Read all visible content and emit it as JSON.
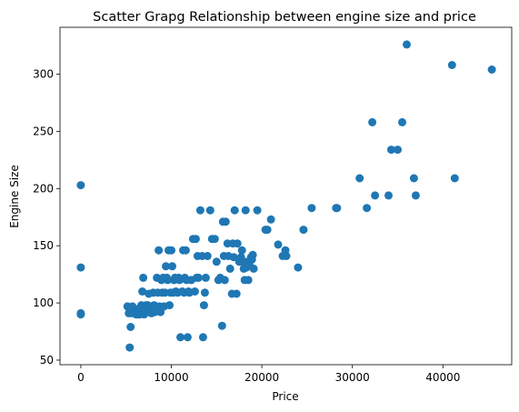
{
  "chart_data": {
    "type": "scatter",
    "title": "Scatter Grapg Relationship between engine size and price",
    "xlabel": "Price",
    "ylabel": "Engine Size",
    "xlim": [
      -2300,
      47600
    ],
    "ylim": [
      46,
      341
    ],
    "xticks": [
      0,
      10000,
      20000,
      30000,
      40000
    ],
    "xtick_labels": [
      "0",
      "10000",
      "20000",
      "30000",
      "40000"
    ],
    "yticks": [
      50,
      100,
      150,
      200,
      250,
      300
    ],
    "ytick_labels": [
      "50",
      "100",
      "150",
      "200",
      "250",
      "300"
    ],
    "grid": false,
    "marker_color": "#1f77b4",
    "points": [
      [
        0,
        203
      ],
      [
        0,
        131
      ],
      [
        0,
        91
      ],
      [
        0,
        90
      ],
      [
        5150,
        97
      ],
      [
        5300,
        91
      ],
      [
        5400,
        61
      ],
      [
        5500,
        79
      ],
      [
        5600,
        91
      ],
      [
        5700,
        97
      ],
      [
        6100,
        90
      ],
      [
        6200,
        92
      ],
      [
        6300,
        90
      ],
      [
        6400,
        95
      ],
      [
        6500,
        90
      ],
      [
        6600,
        92
      ],
      [
        6700,
        98
      ],
      [
        6800,
        110
      ],
      [
        6900,
        122
      ],
      [
        7000,
        90
      ],
      [
        7100,
        92
      ],
      [
        7200,
        98
      ],
      [
        7300,
        95
      ],
      [
        7400,
        98
      ],
      [
        7500,
        108
      ],
      [
        7600,
        92
      ],
      [
        7700,
        97
      ],
      [
        7800,
        91
      ],
      [
        7900,
        97
      ],
      [
        8000,
        109
      ],
      [
        8100,
        98
      ],
      [
        8200,
        92
      ],
      [
        8400,
        122
      ],
      [
        8500,
        109
      ],
      [
        8600,
        146
      ],
      [
        8700,
        97
      ],
      [
        8800,
        92
      ],
      [
        8900,
        120
      ],
      [
        9000,
        109
      ],
      [
        9100,
        122
      ],
      [
        9200,
        97
      ],
      [
        9300,
        109
      ],
      [
        9400,
        132
      ],
      [
        9500,
        122
      ],
      [
        9600,
        120
      ],
      [
        9700,
        146
      ],
      [
        9800,
        98
      ],
      [
        9900,
        109
      ],
      [
        10000,
        146
      ],
      [
        10100,
        132
      ],
      [
        10200,
        109
      ],
      [
        10300,
        120
      ],
      [
        10400,
        122
      ],
      [
        10500,
        110
      ],
      [
        10700,
        109
      ],
      [
        10800,
        122
      ],
      [
        10900,
        120
      ],
      [
        11000,
        70
      ],
      [
        11100,
        121
      ],
      [
        11200,
        110
      ],
      [
        11300,
        146
      ],
      [
        11400,
        109
      ],
      [
        11500,
        122
      ],
      [
        11600,
        146
      ],
      [
        11700,
        120
      ],
      [
        11800,
        70
      ],
      [
        11900,
        110
      ],
      [
        12000,
        109
      ],
      [
        12200,
        120
      ],
      [
        12400,
        156
      ],
      [
        12600,
        110
      ],
      [
        12700,
        156
      ],
      [
        12800,
        122
      ],
      [
        12900,
        141
      ],
      [
        13000,
        122
      ],
      [
        13200,
        181
      ],
      [
        13400,
        141
      ],
      [
        13500,
        70
      ],
      [
        13600,
        98
      ],
      [
        13700,
        109
      ],
      [
        13800,
        122
      ],
      [
        14000,
        141
      ],
      [
        14300,
        181
      ],
      [
        14500,
        156
      ],
      [
        14800,
        156
      ],
      [
        15000,
        136
      ],
      [
        15200,
        120
      ],
      [
        15400,
        122
      ],
      [
        15600,
        80
      ],
      [
        15700,
        171
      ],
      [
        15800,
        141
      ],
      [
        15900,
        120
      ],
      [
        16000,
        171
      ],
      [
        16200,
        152
      ],
      [
        16300,
        141
      ],
      [
        16500,
        130
      ],
      [
        16700,
        108
      ],
      [
        16800,
        152
      ],
      [
        16900,
        140
      ],
      [
        17000,
        181
      ],
      [
        17200,
        108
      ],
      [
        17300,
        152
      ],
      [
        17500,
        136
      ],
      [
        17700,
        140
      ],
      [
        17800,
        146
      ],
      [
        17900,
        136
      ],
      [
        18000,
        130
      ],
      [
        18100,
        120
      ],
      [
        18200,
        181
      ],
      [
        18300,
        131
      ],
      [
        18400,
        136
      ],
      [
        18500,
        120
      ],
      [
        18600,
        134
      ],
      [
        18700,
        137
      ],
      [
        18800,
        140
      ],
      [
        18900,
        138
      ],
      [
        19000,
        142
      ],
      [
        19100,
        130
      ],
      [
        19500,
        181
      ],
      [
        20400,
        164
      ],
      [
        20600,
        164
      ],
      [
        21000,
        173
      ],
      [
        21800,
        151
      ],
      [
        22300,
        141
      ],
      [
        22600,
        146
      ],
      [
        22700,
        141
      ],
      [
        24000,
        131
      ],
      [
        24600,
        164
      ],
      [
        25500,
        183
      ],
      [
        28200,
        183
      ],
      [
        28300,
        183
      ],
      [
        30800,
        209
      ],
      [
        31600,
        183
      ],
      [
        32200,
        258
      ],
      [
        32500,
        194
      ],
      [
        34000,
        194
      ],
      [
        34300,
        234
      ],
      [
        35000,
        234
      ],
      [
        35500,
        258
      ],
      [
        36000,
        326
      ],
      [
        36800,
        209
      ],
      [
        37000,
        194
      ],
      [
        41000,
        308
      ],
      [
        41300,
        209
      ],
      [
        45400,
        304
      ]
    ]
  }
}
